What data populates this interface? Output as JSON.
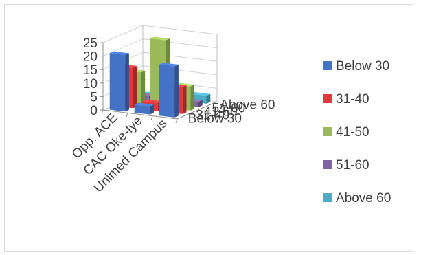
{
  "chart_data": {
    "type": "bar",
    "variant": "3d-column",
    "categories": [
      "Opp. ACE",
      "CAC Oke-Iye",
      "Unimed Campus"
    ],
    "series": [
      {
        "name": "Below 30",
        "values": [
          21,
          3,
          19
        ],
        "color": "#4472C4"
      },
      {
        "name": "31-40",
        "values": [
          15,
          3,
          10
        ],
        "color": "#E0383D"
      },
      {
        "name": "41-50",
        "values": [
          12,
          25,
          9
        ],
        "color": "#9BBB59"
      },
      {
        "name": "51-60",
        "values": [
          2,
          2,
          2
        ],
        "color": "#8064A2"
      },
      {
        "name": "Above 60",
        "values": [
          1,
          1,
          3
        ],
        "color": "#4BACC6"
      }
    ],
    "ylim": [
      0,
      25
    ],
    "yticks": [
      "0",
      "5",
      "10",
      "15",
      "20",
      "25"
    ],
    "depth_labels": [
      "Below 30",
      "31-40",
      "41-50",
      "51-60",
      "Above 60"
    ],
    "grid": true,
    "legend_position": "right"
  }
}
